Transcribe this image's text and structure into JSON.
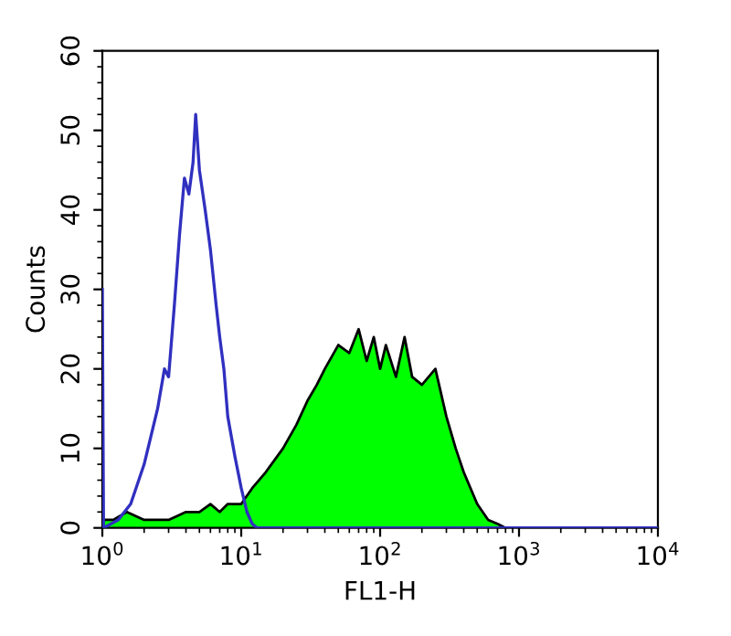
{
  "chart_data": {
    "type": "area",
    "xlabel": "FL1-H",
    "ylabel": "Counts",
    "log": "x",
    "xlim": [
      1,
      10000
    ],
    "ylim": [
      0,
      60
    ],
    "xticks": [
      {
        "value": 1,
        "label": "10$^{0}$"
      },
      {
        "value": 10,
        "label": "10$^{1}$"
      },
      {
        "value": 100,
        "label": "10$^{2}$"
      },
      {
        "value": 1000,
        "label": "10$^{3}$"
      },
      {
        "value": 10000,
        "label": "10$^{4}$"
      }
    ],
    "yticks": [
      0,
      10,
      20,
      30,
      40,
      50,
      60
    ],
    "grid": false,
    "series": [
      {
        "color": "#00ff00",
        "x": [
          1,
          1.2,
          1.5,
          2,
          2.5,
          3,
          4,
          5,
          6,
          7,
          8,
          9,
          10,
          12,
          15,
          20,
          25,
          30,
          35,
          40,
          50,
          60,
          70,
          80,
          90,
          100,
          110,
          130,
          150,
          170,
          200,
          250,
          300,
          350,
          400,
          500,
          600,
          700,
          800,
          1000,
          10000
        ],
        "values": [
          1,
          1,
          2,
          1,
          1,
          1,
          2,
          2,
          3,
          2,
          3,
          3,
          3,
          5,
          7,
          10,
          13,
          16,
          18,
          20,
          23,
          22,
          25,
          21,
          24,
          20,
          23,
          19,
          24,
          19,
          18,
          20,
          14,
          10,
          7,
          3,
          1,
          0.5,
          0,
          0,
          0
        ]
      },
      {
        "type": "line",
        "color": "#3030c0",
        "x": [
          1,
          1.02,
          1.3,
          1.6,
          2,
          2.5,
          2.8,
          3,
          3.3,
          3.6,
          3.9,
          4.2,
          4.5,
          4.7,
          5,
          5.5,
          6,
          6.6,
          7,
          7.5,
          8,
          9,
          10,
          11,
          12,
          13,
          10000
        ],
        "values": [
          30,
          0,
          1,
          3,
          8,
          15,
          20,
          19,
          28,
          37,
          44,
          42,
          46,
          52,
          45,
          40,
          35,
          28,
          24,
          20,
          14,
          9,
          5,
          2,
          0.5,
          0,
          0
        ]
      }
    ]
  }
}
